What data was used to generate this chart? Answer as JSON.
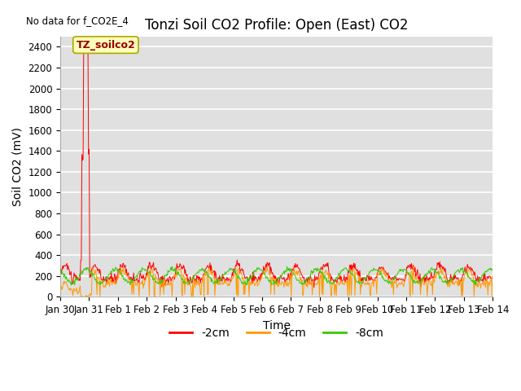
{
  "title": "Tonzi Soil CO2 Profile: Open (East) CO2",
  "ylabel": "Soil CO2 (mV)",
  "xlabel": "Time",
  "top_left_text": "No data for f_CO2E_4",
  "annotation_text": "TZ_soilco2",
  "legend_labels": [
    "-2cm",
    "-4cm",
    "-8cm"
  ],
  "legend_colors": [
    "#ff0000",
    "#ff9900",
    "#33cc00"
  ],
  "ylim": [
    0,
    2500
  ],
  "yticks": [
    0,
    200,
    400,
    600,
    800,
    1000,
    1200,
    1400,
    1600,
    1800,
    2000,
    2200,
    2400
  ],
  "xtick_labels": [
    "Jan 30",
    "Jan 31",
    "Feb 1",
    "Feb 2",
    "Feb 3",
    "Feb 4",
    "Feb 5",
    "Feb 6",
    "Feb 7",
    "Feb 8",
    "Feb 9",
    "Feb 10",
    "Feb 11",
    "Feb 12",
    "Feb 13",
    "Feb 14"
  ],
  "plot_bg_color": "#e0e0e0",
  "fig_bg_color": "#ffffff",
  "grid_color": "#ffffff",
  "title_fontsize": 12,
  "axis_label_fontsize": 10,
  "tick_fontsize": 8.5,
  "annotation_fontsize": 9,
  "annotation_bg": "#ffffbb",
  "annotation_edge": "#aaaa00",
  "annotation_text_color": "#990000"
}
